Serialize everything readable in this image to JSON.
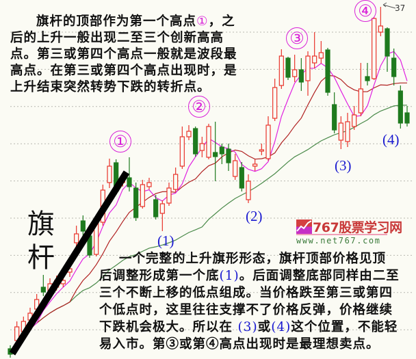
{
  "top_text": {
    "l1a": "旗杆的顶部作为第一个高点",
    "l1b": "①",
    "l1c": "，之",
    "l2": "后的上升一般出现二至三个创新高高",
    "l3": "点。第三或第四个高点一般就是波段最",
    "l4": "高点。在第三或第四个高点出现时，是",
    "l5": "上升结束突然转势下跌的转折点。"
  },
  "bottom_text": {
    "b1": "一个完整的上升旗形形态，旗杆顶部价格见顶",
    "b2a": "后调整形成第一个底",
    "b2b": "(1)",
    "b2c": "。后面调整底部同样由二至",
    "b3": "三个不断上移的低点组成。当价格跌至第三或第四",
    "b4": "个低点时，这里往往支撑不了价格反弹，价格继续",
    "b5a": "下跌机会极大。所以在 ",
    "b5b": "(3)",
    "b5c": "或",
    "b5d": "(4)",
    "b5e": "这个位置，不能轻",
    "b6": "易入市。第③或第④高点出现时是最理想卖点。"
  },
  "annotations": {
    "highs": [
      "①",
      "②",
      "③",
      "④"
    ],
    "lows": [
      "(1)",
      "(2)",
      "(3)",
      "(4)"
    ],
    "flagpole": [
      "旗",
      "杆"
    ],
    "peak_value": "37"
  },
  "logo": {
    "name": "767股票学习网",
    "url": "www.net767.com"
  },
  "colors": {
    "up": "#e8332a",
    "down": "#1e7a1e",
    "ma_short": "#e020e0",
    "ma_mid": "#b02020",
    "ma_long": "#4a8a4a",
    "highs": "#d81fd8",
    "lows": "#1a1ad0",
    "grid": "#b8b8b0",
    "flagpole_line": "#000000"
  },
  "chart_data": {
    "type": "candlestick",
    "title": "",
    "xlabel": "",
    "ylabel": "",
    "ylim": [
      16.2,
      37.2
    ],
    "grid": "horizontal dotted",
    "max_label": 37,
    "candles": [
      [
        17.0,
        17.2,
        16.48,
        16.68
      ],
      [
        17.48,
        18.6,
        17.28,
        18.28
      ],
      [
        18.0,
        18.88,
        17.76,
        18.6
      ],
      [
        18.68,
        19.4,
        18.4,
        19.08
      ],
      [
        19.32,
        20.2,
        19.12,
        19.88
      ],
      [
        20.6,
        21.32,
        20.08,
        20.32
      ],
      [
        20.4,
        21.12,
        20.2,
        20.8
      ],
      [
        20.6,
        21.28,
        20.4,
        21.0
      ],
      [
        20.8,
        21.4,
        20.6,
        21.0
      ],
      [
        21.48,
        22.0,
        21.2,
        21.68
      ],
      [
        23.2,
        24.2,
        23.0,
        23.72
      ],
      [
        24.48,
        24.8,
        23.6,
        23.88
      ],
      [
        23.6,
        24.0,
        22.32,
        22.48
      ],
      [
        22.52,
        24.6,
        22.4,
        24.4
      ],
      [
        24.4,
        26.6,
        24.2,
        26.28
      ],
      [
        26.72,
        28.12,
        26.4,
        27.68
      ],
      [
        27.88,
        28.08,
        26.0,
        26.2
      ],
      [
        26.72,
        27.2,
        26.48,
        27.0
      ],
      [
        27.0,
        28.2,
        26.2,
        26.48
      ],
      [
        26.4,
        26.72,
        24.48,
        24.68
      ],
      [
        25.32,
        26.88,
        25.2,
        26.6
      ],
      [
        26.48,
        27.0,
        26.32,
        26.72
      ],
      [
        25.72,
        26.0,
        24.56,
        24.72
      ],
      [
        24.92,
        25.68,
        23.88,
        25.48
      ],
      [
        25.52,
        26.72,
        25.36,
        26.4
      ],
      [
        26.32,
        27.6,
        26.16,
        27.2
      ],
      [
        27.68,
        30.0,
        27.52,
        29.4
      ],
      [
        29.4,
        30.08,
        29.2,
        29.72
      ],
      [
        29.88,
        30.0,
        28.24,
        28.4
      ],
      [
        28.6,
        29.4,
        28.2,
        29.0
      ],
      [
        28.2,
        30.16,
        28.08,
        30.0
      ],
      [
        28.48,
        30.28,
        26.8,
        28.24
      ],
      [
        28.8,
        29.0,
        27.8,
        28.4
      ],
      [
        28.68,
        29.0,
        27.4,
        27.88
      ],
      [
        27.08,
        28.4,
        26.88,
        28.0
      ],
      [
        27.6,
        27.92,
        26.2,
        26.4
      ],
      [
        25.72,
        27.2,
        25.52,
        26.8
      ],
      [
        27.68,
        28.08,
        27.4,
        27.8
      ],
      [
        28.56,
        29.0,
        28.32,
        28.64
      ],
      [
        28.12,
        30.6,
        28.0,
        30.08
      ],
      [
        30.48,
        32.8,
        30.32,
        32.28
      ],
      [
        32.4,
        34.52,
        32.2,
        34.12
      ],
      [
        34.0,
        34.08,
        32.72,
        32.88
      ],
      [
        32.92,
        34.2,
        32.6,
        33.32
      ],
      [
        33.32,
        34.0,
        32.08,
        32.6
      ],
      [
        32.68,
        34.4,
        31.8,
        34.12
      ],
      [
        33.72,
        35.52,
        33.4,
        34.12
      ],
      [
        34.0,
        35.0,
        33.68,
        34.32
      ],
      [
        34.48,
        34.6,
        31.8,
        32.0
      ],
      [
        31.28,
        32.0,
        29.6,
        29.8
      ],
      [
        29.2,
        30.6,
        28.68,
        30.2
      ],
      [
        29.12,
        30.8,
        28.8,
        30.28
      ],
      [
        30.0,
        31.2,
        29.8,
        30.68
      ],
      [
        30.8,
        33.72,
        30.6,
        32.2
      ],
      [
        32.92,
        33.72,
        32.4,
        32.68
      ],
      [
        32.8,
        36.4,
        32.72,
        36.32
      ],
      [
        35.52,
        37.0,
        35.28,
        35.88
      ],
      [
        35.72,
        35.8,
        33.2,
        34.12
      ],
      [
        34.0,
        34.56,
        32.4,
        32.92
      ],
      [
        32.08,
        32.4,
        29.88,
        30.2
      ],
      [
        30.8,
        31.2,
        30.0,
        30.2
      ]
    ]
  }
}
